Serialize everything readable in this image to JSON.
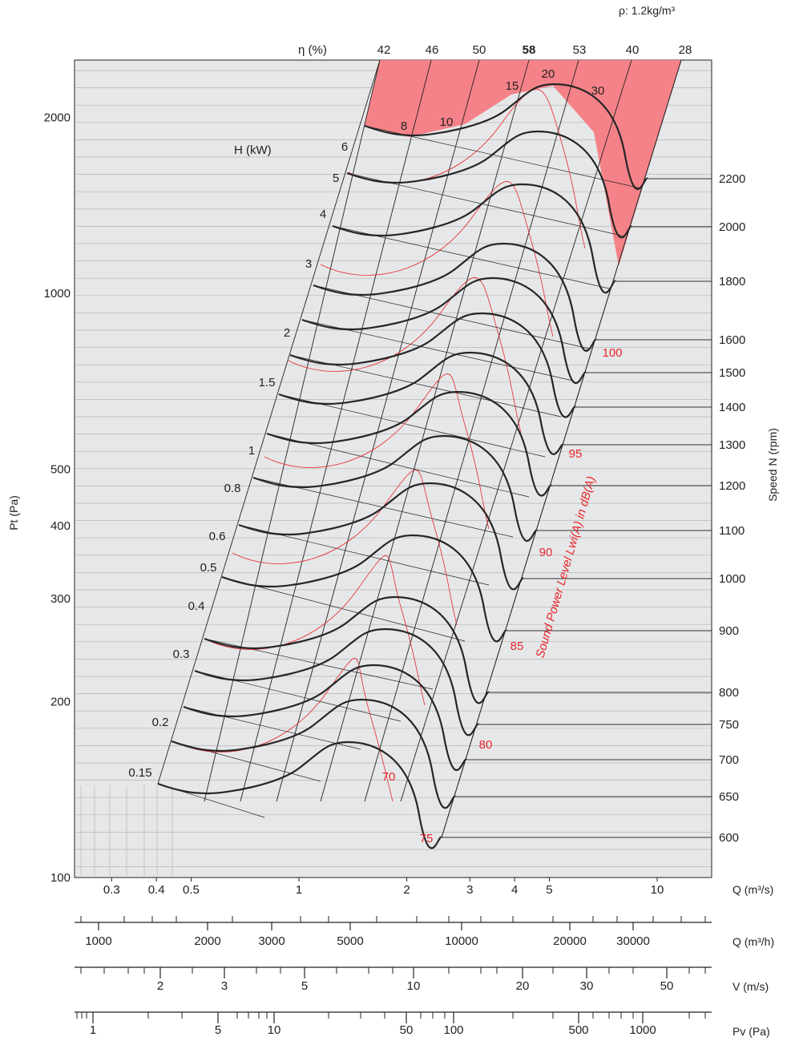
{
  "chart_data": {
    "type": "line",
    "title": "",
    "density_label": "ρ: 1.2kg/m³",
    "ylabel": "Pt (Pa)",
    "y_ticks": [
      "100",
      "200",
      "300",
      "400",
      "500",
      "1000",
      "2000"
    ],
    "xlabel": "Q (m³/s)",
    "x_ticks": [
      "0.3",
      "0.4",
      "0.5",
      "1",
      "2",
      "3",
      "4",
      "5",
      "10"
    ],
    "speed_axis_label": "Speed N (rpm)",
    "speeds": [
      "600",
      "650",
      "700",
      "750",
      "800",
      "900",
      "1000",
      "1100",
      "1200",
      "1300",
      "1400",
      "1500",
      "1600",
      "1800",
      "2000",
      "2200"
    ],
    "efficiency_label": "η (%)",
    "efficiency_values": [
      "42",
      "46",
      "50",
      "58",
      "53",
      "40",
      "28"
    ],
    "power_label": "H (kW)",
    "power_values": [
      "0.15",
      "0.2",
      "0.3",
      "0.4",
      "0.5",
      "0.6",
      "0.8",
      "1",
      "1.5",
      "2",
      "3",
      "4",
      "5",
      "6",
      "8",
      "10",
      "15",
      "20",
      "30"
    ],
    "sound_label": "Sound Power Level Lwi(A) in dB(A)",
    "sound_values": [
      "70",
      "75",
      "80",
      "85",
      "90",
      "95",
      "100"
    ],
    "scales": [
      {
        "label": "Q (m³/h)",
        "ticks": [
          "1000",
          "2000",
          "3000",
          "5000",
          "10000",
          "20000",
          "30000"
        ]
      },
      {
        "label": "V (m/s)",
        "ticks": [
          "2",
          "3",
          "5",
          "10",
          "20",
          "30",
          "50"
        ]
      },
      {
        "label": "Pv (Pa)",
        "ticks": [
          "1",
          "5",
          "10",
          "50",
          "100",
          "500",
          "1000"
        ]
      }
    ]
  }
}
